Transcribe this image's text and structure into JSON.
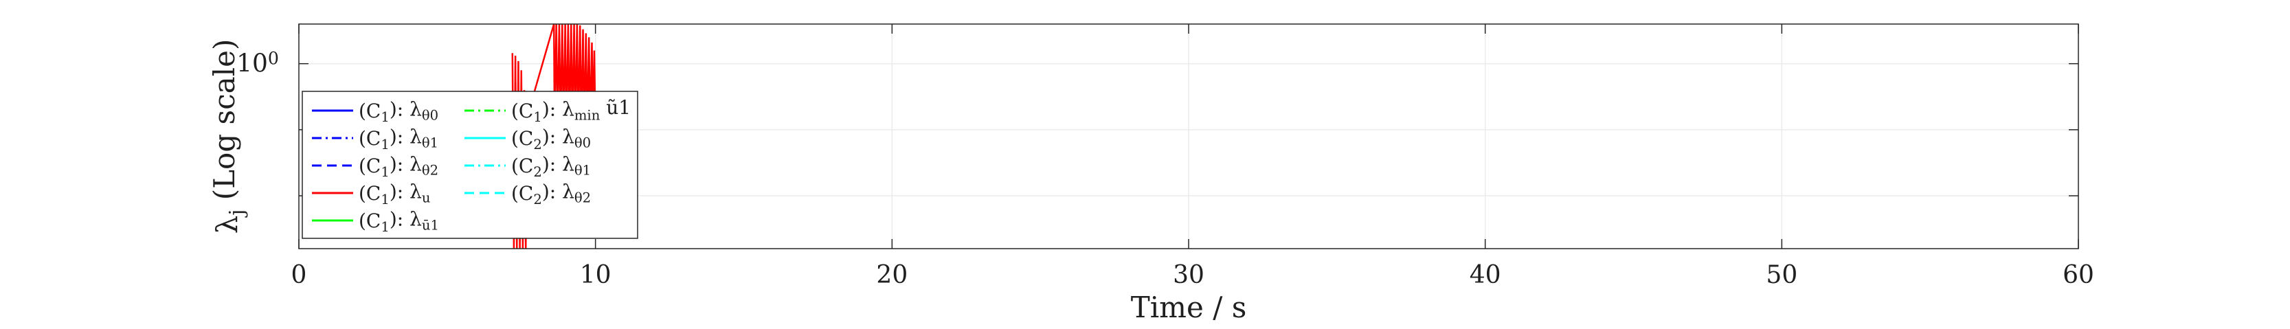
{
  "chart_data": {
    "type": "line",
    "title": "",
    "xlabel": "Time / s",
    "ylabel": "λ_j (Log scale)",
    "xlim": [
      0,
      60
    ],
    "x_ticks": [
      0,
      10,
      20,
      30,
      40,
      50,
      60
    ],
    "y_scale": "log",
    "ylim_log10": [
      -1.4,
      0.3
    ],
    "y_tick_log10": [
      -1,
      -0.5,
      0
    ],
    "y_tick_labels": [
      "",
      "",
      "10^0"
    ],
    "grid": true,
    "legend_placement": "lower-left",
    "series": [
      {
        "name": "(C_1): λ_θ0",
        "color": "#0000ff",
        "dash": "solid",
        "points": []
      },
      {
        "name": "(C_1): λ_θ1",
        "color": "#0000ff",
        "dash": "dashdot",
        "points": []
      },
      {
        "name": "(C_1): λ_θ2",
        "color": "#0000ff",
        "dash": "dashed",
        "points": []
      },
      {
        "name": "(C_1): λ_u",
        "color": "#ff0000",
        "dash": "solid",
        "points": [
          [
            7.2,
            0.08
          ],
          [
            7.25,
            -1.4
          ],
          [
            7.3,
            0.06
          ],
          [
            7.35,
            -1.4
          ],
          [
            7.4,
            0.02
          ],
          [
            7.45,
            -1.4
          ],
          [
            7.5,
            -0.05
          ],
          [
            7.55,
            -1.4
          ],
          [
            7.6,
            -0.2
          ],
          [
            7.65,
            -1.4
          ],
          [
            7.7,
            -0.4
          ],
          [
            8.6,
            0.3
          ],
          [
            8.62,
            -0.45
          ],
          [
            8.68,
            0.3
          ],
          [
            8.72,
            -0.48
          ],
          [
            8.78,
            0.3
          ],
          [
            8.82,
            -0.5
          ],
          [
            8.88,
            0.3
          ],
          [
            8.92,
            -0.5
          ],
          [
            8.98,
            0.3
          ],
          [
            9.02,
            -0.5
          ],
          [
            9.08,
            0.3
          ],
          [
            9.12,
            -0.5
          ],
          [
            9.18,
            0.3
          ],
          [
            9.22,
            -0.5
          ],
          [
            9.28,
            0.3
          ],
          [
            9.32,
            -0.5
          ],
          [
            9.38,
            0.3
          ],
          [
            9.42,
            -0.5
          ],
          [
            9.48,
            0.29
          ],
          [
            9.52,
            -0.5
          ],
          [
            9.58,
            0.26
          ],
          [
            9.62,
            -0.5
          ],
          [
            9.68,
            0.23
          ],
          [
            9.72,
            -0.5
          ],
          [
            9.78,
            0.2
          ],
          [
            9.82,
            -0.5
          ],
          [
            9.88,
            0.16
          ],
          [
            9.92,
            -0.5
          ],
          [
            9.96,
            0.1
          ],
          [
            10.0,
            -0.5
          ]
        ]
      },
      {
        "name": "(C_1): λ_ū1",
        "color": "#00ff00",
        "dash": "solid",
        "points": []
      },
      {
        "name": "(C_1): λ_min ũ1",
        "color": "#00ff00",
        "dash": "dashdot",
        "points": []
      },
      {
        "name": "(C_2): λ_θ0",
        "color": "#00ffff",
        "dash": "solid",
        "points": []
      },
      {
        "name": "(C_2): λ_θ1",
        "color": "#00ffff",
        "dash": "dashdot",
        "points": []
      },
      {
        "name": "(C_2): λ_θ2",
        "color": "#00ffff",
        "dash": "dashed",
        "points": []
      }
    ]
  }
}
